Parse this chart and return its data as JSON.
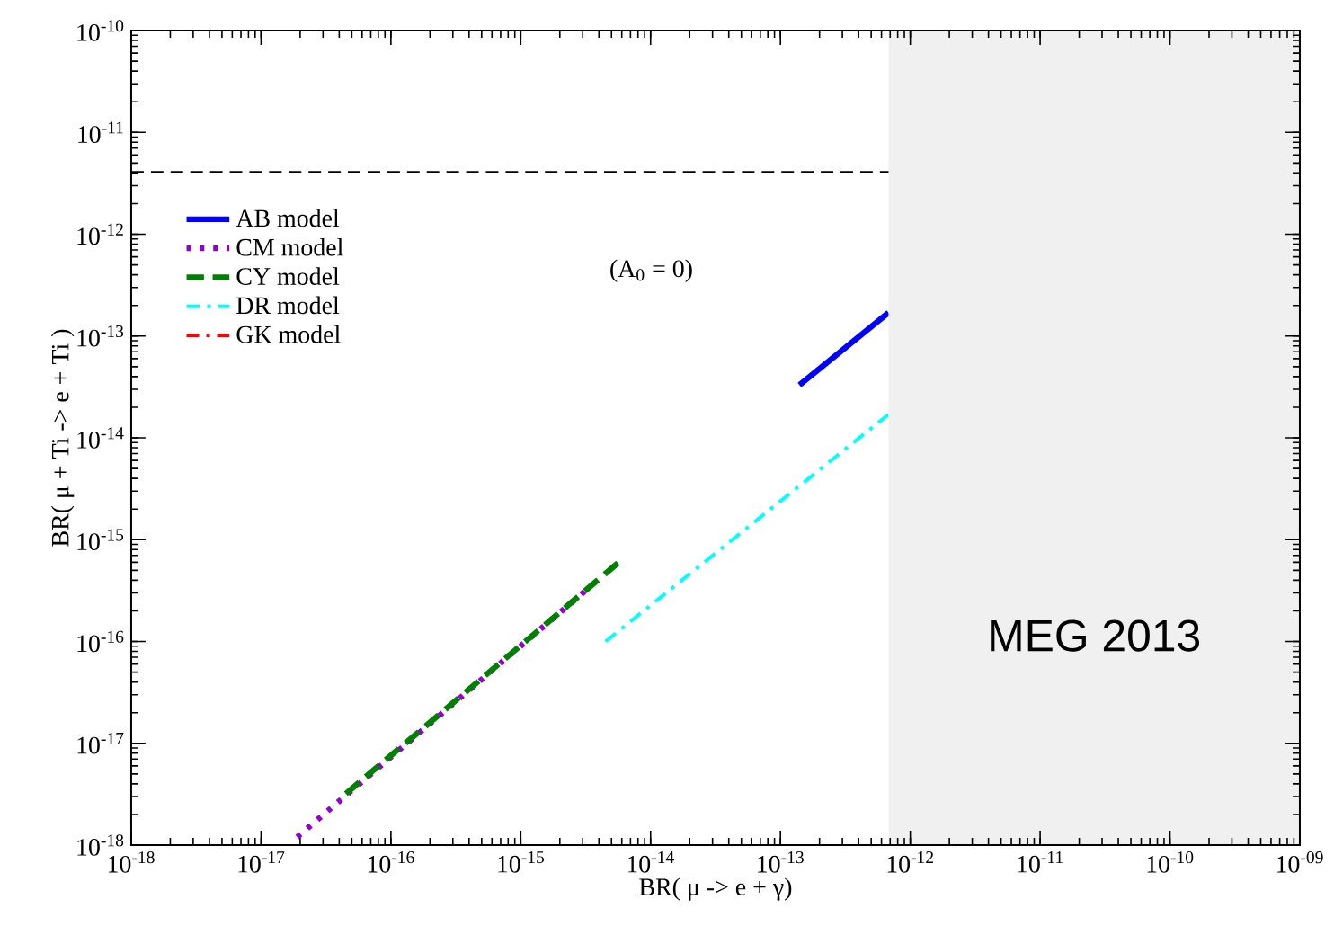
{
  "chart_data": {
    "type": "line",
    "xlabel": "BR( μ -> e + γ)",
    "ylabel": "BR( μ + Ti -> e + Ti )",
    "log": "xy",
    "legend": "top left",
    "xlim": [
      1e-18,
      1e-09
    ],
    "ylim": [
      1e-18,
      1e-10
    ],
    "xticks": [
      {
        "value": 1e-18,
        "label": "10$^{-18}$"
      },
      {
        "value": 1e-17,
        "label": "10$^{-17}$"
      },
      {
        "value": 1e-16,
        "label": "10$^{-16}$"
      },
      {
        "value": 1e-15,
        "label": "10$^{-15}$"
      },
      {
        "value": 1e-14,
        "label": "10$^{-14}$"
      },
      {
        "value": 1e-13,
        "label": "10$^{-13}$"
      },
      {
        "value": 1e-12,
        "label": "10$^{-12}$"
      },
      {
        "value": 1e-11,
        "label": "10$^{-11}$"
      },
      {
        "value": 1e-10,
        "label": "10$^{-10}$"
      },
      {
        "value": 1e-09,
        "label": "10$^{-09}$"
      }
    ],
    "yticks": [
      {
        "value": 1e-18,
        "label": "10$^{-18}$"
      },
      {
        "value": 1e-17,
        "label": "10$^{-17}$"
      },
      {
        "value": 1e-16,
        "label": "10$^{-16}$"
      },
      {
        "value": 1e-15,
        "label": "10$^{-15}$"
      },
      {
        "value": 1e-14,
        "label": "10$^{-14}$"
      },
      {
        "value": 1e-13,
        "label": "10$^{-13}$"
      },
      {
        "value": 1e-12,
        "label": "10$^{-12}$"
      },
      {
        "value": 1e-11,
        "label": "10$^{-11}$"
      },
      {
        "value": 1e-10,
        "label": "10$^{-10}$"
      }
    ],
    "series": [
      {
        "name": "AB model",
        "color": "#0000ff",
        "line_style": "solid",
        "x": [
          1.4e-13,
          6.8e-13
        ],
        "values": [
          3.3e-14,
          1.7e-13
        ]
      },
      {
        "name": "CM model",
        "color": "#9400d3",
        "line_style": "dotted",
        "x": [
          1.9e-17,
          3.1e-15
        ],
        "values": [
          1.2e-18,
          3.1e-16
        ]
      },
      {
        "name": "CY model",
        "color": "#008000",
        "line_style": "dashed",
        "x": [
          4.5e-17,
          5.6e-15
        ],
        "values": [
          3.2e-18,
          5.9e-16
        ]
      },
      {
        "name": "DR model",
        "color": "#00ffff",
        "line_style": "dashdot",
        "x": [
          4.5e-15,
          6.8e-13
        ],
        "values": [
          1e-16,
          1.7e-14
        ]
      },
      {
        "name": "GK model",
        "color": "#ff0000",
        "line_style": "dashdot",
        "values": [
          null,
          null
        ]
      }
    ],
    "ref_lines": [
      {
        "axis": "y",
        "value": 4.1e-12,
        "color": "#000000",
        "line_style": "dashed"
      }
    ],
    "bands": [
      {
        "axis": "x",
        "from": 6.8e-13,
        "to": 1e-09,
        "label": "MEG 2013",
        "color": "#f0f0f0"
      }
    ],
    "annotations": [
      "(A$_{0}$ = 0)"
    ]
  }
}
